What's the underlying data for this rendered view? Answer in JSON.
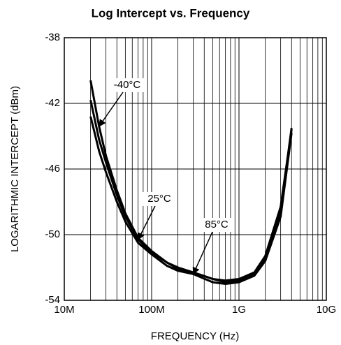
{
  "chart_data": {
    "type": "line",
    "title": "Log Intercept vs. Frequency",
    "x_label": "FREQUENCY (Hz)",
    "y_label": "LOGARITHMIC INTERCEPT (dBm)",
    "x_log": true,
    "grid": true,
    "minor_grid": true,
    "xlim": [
      10000000,
      10000000000
    ],
    "xticks": [
      {
        "value": 10000000,
        "label": "10M"
      },
      {
        "value": 100000000,
        "label": "100M"
      },
      {
        "value": 1000000000,
        "label": "1G"
      },
      {
        "value": 10000000000,
        "label": "10G"
      }
    ],
    "ylim": [
      -54,
      -38
    ],
    "yticks": [
      -54,
      -50,
      -46,
      -42,
      -38
    ],
    "x": [
      20000000,
      25000000,
      30000000,
      40000000,
      50000000,
      70000000,
      100000000,
      150000000,
      200000000,
      300000000,
      500000000,
      700000000,
      1000000000,
      1500000000,
      2000000000,
      3000000000,
      4000000000
    ],
    "series": [
      {
        "name": "-40°C",
        "color": "#000000",
        "values": [
          -40.6,
          -43.4,
          -45.2,
          -47.3,
          -48.7,
          -50.2,
          -51.0,
          -51.7,
          -52.0,
          -52.3,
          -52.7,
          -52.8,
          -52.7,
          -52.3,
          -51.3,
          -48.3,
          -43.6
        ]
      },
      {
        "name": "25°C",
        "color": "#000000",
        "values": [
          -41.8,
          -44.2,
          -45.6,
          -47.6,
          -48.9,
          -50.3,
          -51.1,
          -51.7,
          -52.1,
          -52.3,
          -52.7,
          -52.9,
          -52.8,
          -52.4,
          -51.5,
          -48.6,
          -43.5
        ]
      },
      {
        "name": "85°C",
        "color": "#000000",
        "values": [
          -42.8,
          -44.9,
          -46.2,
          -48.0,
          -49.2,
          -50.5,
          -51.2,
          -51.9,
          -52.2,
          -52.4,
          -52.9,
          -53.0,
          -52.9,
          -52.5,
          -51.6,
          -48.9,
          -43.8
        ]
      }
    ]
  }
}
